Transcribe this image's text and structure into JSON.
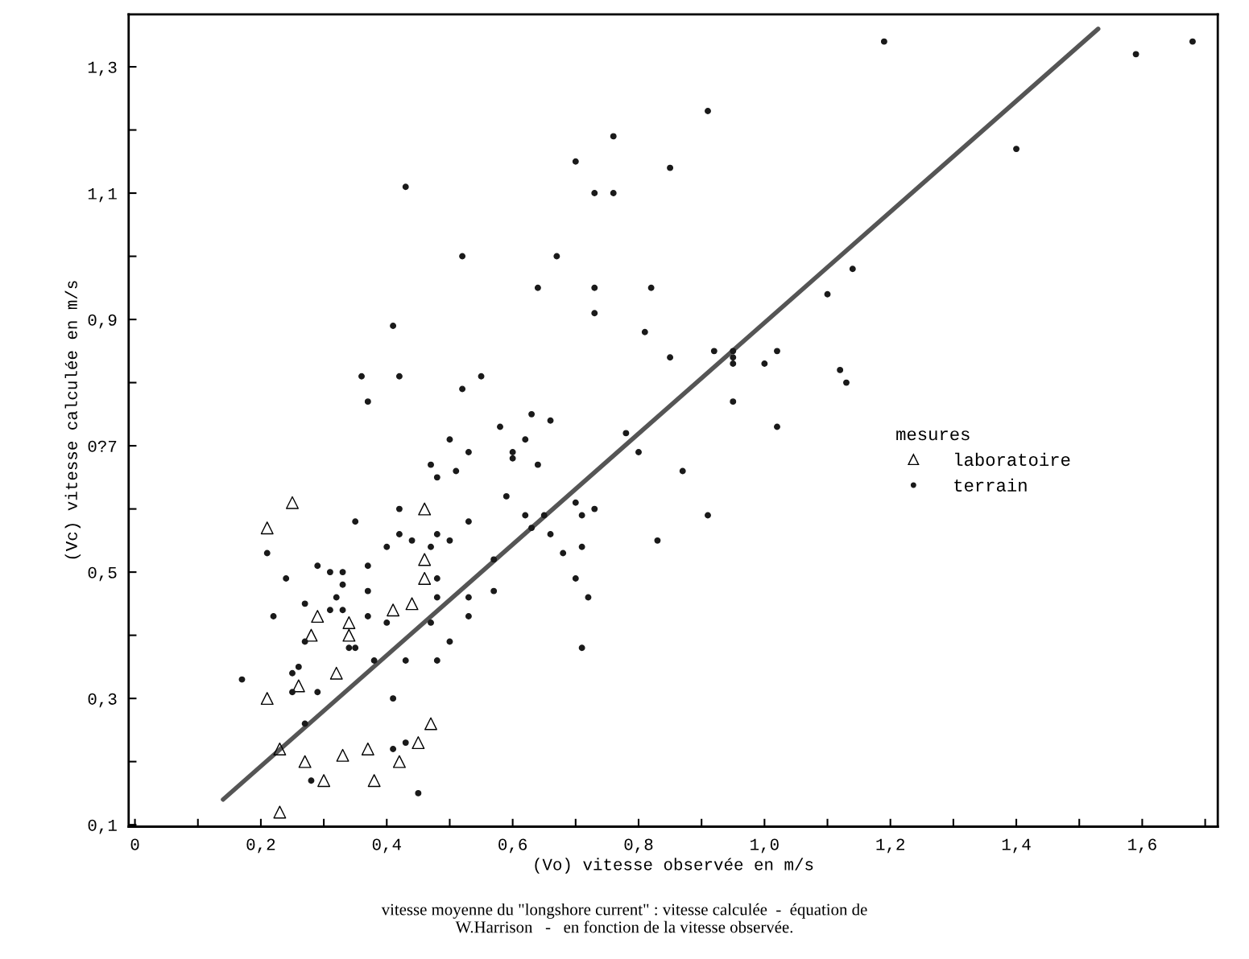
{
  "chart_data": {
    "type": "scatter",
    "xlabel": "(Vo) vitesse observée en m/s",
    "ylabel": "(Vc) vitesse calculée en m/s",
    "annotations": [
      "vitesse moyenne du \"longshore current\" : vitesse calculée  -  équation de\nW.Harrison   -   en fonction de la vitesse observée."
    ],
    "legend_title": "mesures",
    "legend": "right",
    "grid": false,
    "xlim": [
      -0.01,
      1.72
    ],
    "ylim": [
      0.097,
      1.383
    ],
    "xticks": [
      0,
      {
        "value": 0.1,
        "label": null
      },
      {
        "value": 0.2,
        "label": "0,2"
      },
      {
        "value": 0.3,
        "label": null
      },
      {
        "value": 0.4,
        "label": "0,4"
      },
      {
        "value": 0.5,
        "label": null
      },
      {
        "value": 0.6,
        "label": "0,6"
      },
      {
        "value": 0.7,
        "label": null
      },
      {
        "value": 0.8,
        "label": "0,8"
      },
      {
        "value": 0.9,
        "label": null
      },
      {
        "value": 1.0,
        "label": "1,0"
      },
      {
        "value": 1.1,
        "label": null
      },
      {
        "value": 1.2,
        "label": "1,2"
      },
      {
        "value": 1.3,
        "label": null
      },
      {
        "value": 1.4,
        "label": "1,4"
      },
      {
        "value": 1.5,
        "label": null
      },
      {
        "value": 1.6,
        "label": "1,6"
      },
      {
        "value": 1.7,
        "label": null
      }
    ],
    "yticks": [
      {
        "value": 0.1,
        "label": "0,1"
      },
      {
        "value": 0.2,
        "label": null
      },
      {
        "value": 0.3,
        "label": "0,3"
      },
      {
        "value": 0.4,
        "label": null
      },
      {
        "value": 0.5,
        "label": "0,5"
      },
      {
        "value": 0.6,
        "label": null
      },
      {
        "value": 0.7,
        "label": "0?7"
      },
      {
        "value": 0.8,
        "label": null
      },
      {
        "value": 0.9,
        "label": "0,9"
      },
      {
        "value": 1.0,
        "label": null
      },
      {
        "value": 1.1,
        "label": "1,1"
      },
      {
        "value": 1.2,
        "label": null
      },
      {
        "value": 1.3,
        "label": "1,3"
      }
    ],
    "series": [
      {
        "name": "laboratoire",
        "marker": "triangle",
        "color": "#000000",
        "x": [
          0.25,
          0.21,
          0.46,
          0.46,
          0.46,
          0.44,
          0.41,
          0.34,
          0.34,
          0.29,
          0.28,
          0.32,
          0.26,
          0.21,
          0.23,
          0.27,
          0.33,
          0.37,
          0.45,
          0.47,
          0.42,
          0.3,
          0.38,
          0.23
        ],
        "values": [
          0.61,
          0.57,
          0.6,
          0.52,
          0.49,
          0.45,
          0.44,
          0.42,
          0.4,
          0.43,
          0.4,
          0.34,
          0.32,
          0.3,
          0.22,
          0.2,
          0.21,
          0.22,
          0.23,
          0.26,
          0.2,
          0.17,
          0.17,
          0.12
        ]
      },
      {
        "name": "terrain",
        "marker": "circle",
        "color": "#1a1a1a",
        "x": [
          0.48,
          0.42,
          0.35,
          0.53,
          0.42,
          0.44,
          0.48,
          0.5,
          0.47,
          0.4,
          0.21,
          0.29,
          0.31,
          0.33,
          0.37,
          0.24,
          0.33,
          0.37,
          0.32,
          0.48,
          0.48,
          0.53,
          0.27,
          0.31,
          0.33,
          0.37,
          0.22,
          0.4,
          0.47,
          0.53,
          0.5,
          0.27,
          0.34,
          0.35,
          0.38,
          0.43,
          0.48,
          0.26,
          0.25,
          0.17,
          0.25,
          0.29,
          0.41,
          0.27,
          0.43,
          0.41,
          0.28,
          0.45,
          0.52,
          0.67,
          0.64,
          0.73,
          0.73,
          0.82,
          0.81,
          0.41,
          0.36,
          0.42,
          0.55,
          0.52,
          0.37,
          0.63,
          0.66,
          0.58,
          0.5,
          0.62,
          0.53,
          0.6,
          0.6,
          0.64,
          0.47,
          0.51,
          0.78,
          0.8,
          0.87,
          0.59,
          0.85,
          1.19,
          1.59,
          1.68,
          1.4,
          0.91,
          0.76,
          0.7,
          0.85,
          0.73,
          0.76,
          1.14,
          1.1,
          0.92,
          0.95,
          0.95,
          0.95,
          1.02,
          1.0,
          1.12,
          1.13,
          0.95,
          1.02,
          0.91,
          0.83,
          0.7,
          0.71,
          0.73,
          0.62,
          0.63,
          0.65,
          0.66,
          0.68,
          0.71,
          0.57,
          0.57,
          0.7,
          0.72,
          0.71,
          0.43
        ],
        "values": [
          0.65,
          0.6,
          0.58,
          0.58,
          0.56,
          0.55,
          0.56,
          0.55,
          0.54,
          0.54,
          0.53,
          0.51,
          0.5,
          0.5,
          0.51,
          0.49,
          0.48,
          0.47,
          0.46,
          0.49,
          0.46,
          0.46,
          0.45,
          0.44,
          0.44,
          0.43,
          0.43,
          0.42,
          0.42,
          0.43,
          0.39,
          0.39,
          0.38,
          0.38,
          0.36,
          0.36,
          0.36,
          0.35,
          0.34,
          0.33,
          0.31,
          0.31,
          0.3,
          0.26,
          0.23,
          0.22,
          0.17,
          0.15,
          1.0,
          1.0,
          0.95,
          0.95,
          0.91,
          0.95,
          0.88,
          0.89,
          0.81,
          0.81,
          0.81,
          0.79,
          0.77,
          0.75,
          0.74,
          0.73,
          0.71,
          0.71,
          0.69,
          0.69,
          0.68,
          0.67,
          0.67,
          0.66,
          0.72,
          0.69,
          0.66,
          0.62,
          0.84,
          1.34,
          1.32,
          1.34,
          1.17,
          1.23,
          1.19,
          1.15,
          1.14,
          1.1,
          1.1,
          0.98,
          0.94,
          0.85,
          0.85,
          0.84,
          0.83,
          0.85,
          0.83,
          0.82,
          0.8,
          0.77,
          0.73,
          0.59,
          0.55,
          0.61,
          0.59,
          0.6,
          0.59,
          0.57,
          0.59,
          0.56,
          0.53,
          0.54,
          0.52,
          0.47,
          0.49,
          0.46,
          0.38,
          1.11
        ]
      },
      {
        "type": "line",
        "color": "#555555",
        "x": [
          0.14,
          1.53
        ],
        "values": [
          0.14,
          1.36
        ]
      }
    ]
  }
}
